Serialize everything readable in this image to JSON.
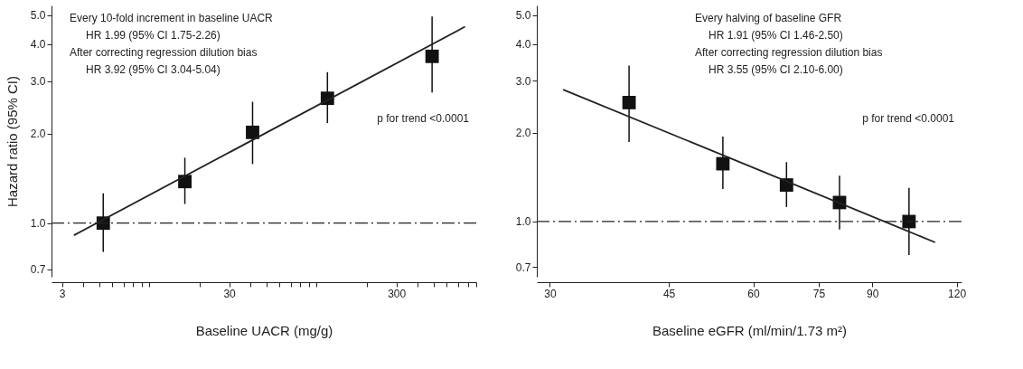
{
  "chart_data": [
    {
      "type": "scatter",
      "xlabel": "Baseline UACR (mg/g)",
      "ylabel": "Hazard ratio (95% CI)",
      "log": "xy",
      "grid": false,
      "xlim": [
        2.6,
        900
      ],
      "ylim": [
        0.66,
        5.4
      ],
      "xticks": [
        3,
        {
          "value": 4,
          "label": null
        },
        {
          "value": 5,
          "label": null
        },
        {
          "value": 6,
          "label": null
        },
        {
          "value": 7,
          "label": null
        },
        {
          "value": 8,
          "label": null
        },
        {
          "value": 9,
          "label": null
        },
        {
          "value": 10,
          "label": null
        },
        {
          "value": 20,
          "label": null
        },
        30,
        {
          "value": 40,
          "label": null
        },
        {
          "value": 50,
          "label": null
        },
        {
          "value": 60,
          "label": null
        },
        {
          "value": 70,
          "label": null
        },
        {
          "value": 80,
          "label": null
        },
        {
          "value": 90,
          "label": null
        },
        {
          "value": 100,
          "label": null
        },
        {
          "value": 200,
          "label": null
        },
        300,
        {
          "value": 400,
          "label": null
        },
        {
          "value": 500,
          "label": null
        },
        {
          "value": 600,
          "label": null
        },
        {
          "value": 700,
          "label": null
        },
        {
          "value": 800,
          "label": null
        },
        {
          "value": 900,
          "label": null
        }
      ],
      "yticks": [
        {
          "value": 0.7,
          "label": "0.7"
        },
        {
          "value": 1,
          "label": "1.0"
        },
        {
          "value": 2,
          "label": "2.0"
        },
        {
          "value": 3,
          "label": "3.0"
        },
        {
          "value": 4,
          "label": "4.0"
        },
        {
          "value": 5,
          "label": "5.0"
        }
      ],
      "ref_lines": [
        {
          "axis": "y",
          "value": 1,
          "line_style": "dashdot",
          "color": "#222222"
        }
      ],
      "annotations": [
        "Every 10-fold increment in baseline UACR",
        "HR 1.99 (95% CI 1.75-2.26)",
        "After correcting regression dilution bias",
        "HR 3.92 (95% CI 3.04-5.04)",
        "p for trend <0.0001"
      ],
      "series": [
        {
          "marker": "square",
          "color": "#111111",
          "x": [
            5.3,
            16.3,
            41.4,
            116,
            490
          ],
          "values": [
            1.0,
            1.38,
            2.02,
            2.63,
            3.64
          ],
          "errors": [
            [
              0.8,
              1.26
            ],
            [
              1.16,
              1.66
            ],
            [
              1.58,
              2.56
            ],
            [
              2.17,
              3.22
            ],
            [
              2.75,
              4.96
            ]
          ]
        },
        {
          "type": "line",
          "marker": "none",
          "color": "#222222",
          "x": [
            3.54,
            771
          ],
          "values": [
            0.91,
            4.58
          ]
        }
      ]
    },
    {
      "type": "scatter",
      "xlabel": "Baseline eGFR (ml/min/1.73 m²)",
      "log": "xy",
      "grid": false,
      "xlim": [
        28.7,
        122
      ],
      "ylim": [
        0.65,
        5.4
      ],
      "xticks": [
        30,
        45,
        60,
        75,
        90,
        120
      ],
      "yticks": [
        {
          "value": 0.7,
          "label": "0.7"
        },
        {
          "value": 1,
          "label": "1.0"
        },
        {
          "value": 2,
          "label": "2.0"
        },
        {
          "value": 3,
          "label": "3.0"
        },
        {
          "value": 4,
          "label": "4.0"
        },
        {
          "value": 5,
          "label": "5.0"
        }
      ],
      "ref_lines": [
        {
          "axis": "y",
          "value": 1,
          "line_style": "dashdot",
          "color": "#222222"
        }
      ],
      "annotations": [
        "Every halving of baseline GFR",
        "HR 1.91 (95% CI 1.46-2.50)",
        "After correcting regression dilution bias",
        "HR 3.55 (95% CI 2.10-6.00)",
        "p for trend <0.0001"
      ],
      "series": [
        {
          "marker": "square",
          "color": "#111111",
          "x": [
            39.3,
            54.1,
            67.2,
            80.5,
            102
          ],
          "values": [
            2.53,
            1.57,
            1.33,
            1.16,
            1.0
          ],
          "errors": [
            [
              1.86,
              3.38
            ],
            [
              1.29,
              1.94
            ],
            [
              1.12,
              1.59
            ],
            [
              0.94,
              1.43
            ],
            [
              0.77,
              1.3
            ]
          ]
        },
        {
          "type": "line",
          "marker": "none",
          "color": "#222222",
          "x": [
            31.4,
            111.5
          ],
          "values": [
            2.8,
            0.85
          ]
        }
      ]
    }
  ]
}
